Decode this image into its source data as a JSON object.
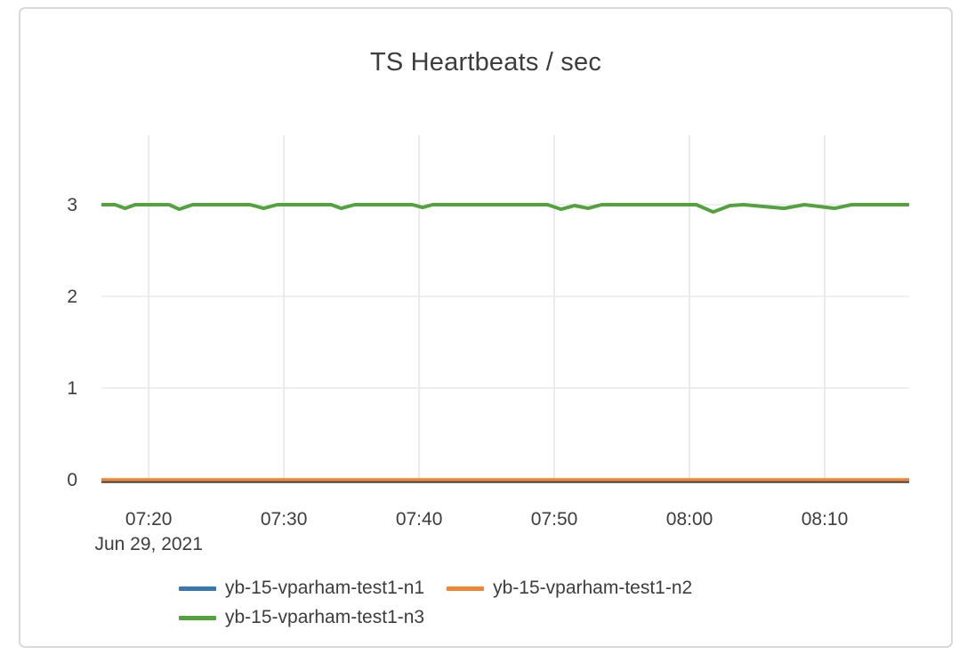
{
  "card": {
    "title": "TS Heartbeats / sec"
  },
  "colors": {
    "grid": "#eaeaea",
    "axis_line": "#444444",
    "tick_label": "#3d3d3d",
    "card_border": "#d9d9d9"
  },
  "chart_data": {
    "type": "line",
    "title": "TS Heartbeats / sec",
    "xlabel": "",
    "ylabel": "",
    "x_axis": {
      "date_label": "Jun 29, 2021",
      "tick_labels": [
        "07:20",
        "07:30",
        "07:40",
        "07:50",
        "08:00",
        "08:10"
      ],
      "range": [
        "07:16:30",
        "08:16:15"
      ]
    },
    "y_axis": {
      "tick_labels": [
        "0",
        "1",
        "2",
        "3"
      ],
      "tick_values": [
        0,
        1,
        2,
        3
      ],
      "range": [
        0,
        3.76
      ]
    },
    "grid": true,
    "legend_position": "bottom",
    "series": [
      {
        "name": "yb-15-vparham-test1-n1",
        "color": "#3a76af",
        "width": 3,
        "points": [
          [
            "07:16:30",
            0
          ],
          [
            "08:16:15",
            0
          ]
        ]
      },
      {
        "name": "yb-15-vparham-test1-n2",
        "color": "#ef8636",
        "width": 3.5,
        "points": [
          [
            "07:16:30",
            0
          ],
          [
            "08:16:15",
            0
          ]
        ]
      },
      {
        "name": "yb-15-vparham-test1-n3",
        "color": "#54a140",
        "width": 4,
        "points": [
          [
            "07:16:30",
            3
          ],
          [
            "07:17:30",
            3
          ],
          [
            "07:18:15",
            2.96
          ],
          [
            "07:19:00",
            3
          ],
          [
            "07:21:30",
            3
          ],
          [
            "07:22:15",
            2.95
          ],
          [
            "07:23:15",
            3
          ],
          [
            "07:27:30",
            3
          ],
          [
            "07:28:30",
            2.96
          ],
          [
            "07:29:30",
            3
          ],
          [
            "07:33:30",
            3
          ],
          [
            "07:34:15",
            2.96
          ],
          [
            "07:35:15",
            3
          ],
          [
            "07:39:30",
            3
          ],
          [
            "07:40:15",
            2.97
          ],
          [
            "07:41:00",
            3
          ],
          [
            "07:49:30",
            3
          ],
          [
            "07:50:30",
            2.95
          ],
          [
            "07:51:30",
            2.99
          ],
          [
            "07:52:30",
            2.96
          ],
          [
            "07:53:30",
            3
          ],
          [
            "08:00:30",
            3
          ],
          [
            "08:01:45",
            2.92
          ],
          [
            "08:03:00",
            2.99
          ],
          [
            "08:04:00",
            3
          ],
          [
            "08:07:00",
            2.96
          ],
          [
            "08:08:30",
            3
          ],
          [
            "08:10:45",
            2.96
          ],
          [
            "08:12:00",
            3
          ],
          [
            "08:16:15",
            3
          ]
        ]
      }
    ]
  }
}
